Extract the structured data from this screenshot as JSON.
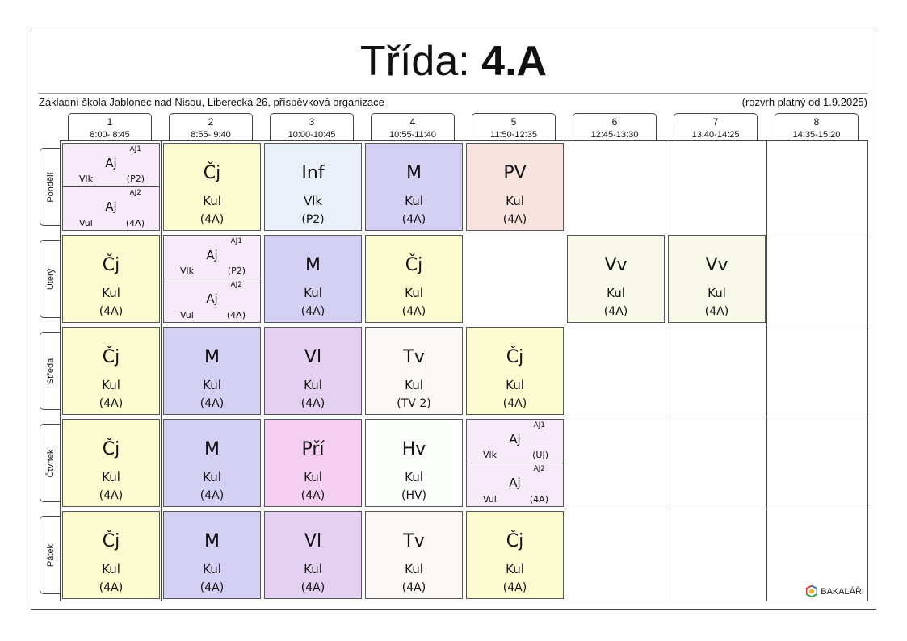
{
  "title": {
    "label": "Třída: ",
    "class": "4.A"
  },
  "school": "Základní škola Jablonec nad Nisou, Liberecká 26, příspěvková organizace",
  "validity": "(rozvrh platný od 1.9.2025)",
  "periods": [
    {
      "num": "1",
      "time": "8:00- 8:45"
    },
    {
      "num": "2",
      "time": "8:55- 9:40"
    },
    {
      "num": "3",
      "time": "10:00-10:45"
    },
    {
      "num": "4",
      "time": "10:55-11:40"
    },
    {
      "num": "5",
      "time": "11:50-12:35"
    },
    {
      "num": "6",
      "time": "12:45-13:30"
    },
    {
      "num": "7",
      "time": "13:40-14:25"
    },
    {
      "num": "8",
      "time": "14:35-15:20"
    }
  ],
  "days": [
    "Pondělí",
    "Úterý",
    "Středa",
    "Čtvrtek",
    "Pátek"
  ],
  "colors": {
    "Cj": "#fdfbd0",
    "Aj": "#f7ebf9",
    "Inf": "#eaf0fa",
    "M": "#d4d0f3",
    "PV": "#f8e3df",
    "Vv": "#f8f9e8",
    "Vl": "#e4d1f1",
    "Tv": "#faf7f4",
    "Pri": "#f5cff1",
    "Hv": "#fbfefb"
  },
  "lessons": [
    {
      "day": 0,
      "period": 0,
      "split": true,
      "color": "Aj",
      "groups": [
        {
          "group": "AJ1",
          "subject": "Aj",
          "teacher": "Vlk",
          "room": "(P2)"
        },
        {
          "group": "AJ2",
          "subject": "Aj",
          "teacher": "Vul",
          "room": "(4A)"
        }
      ]
    },
    {
      "day": 0,
      "period": 1,
      "subject": "Čj",
      "teacher": "Kul",
      "room": "(4A)",
      "color": "Cj"
    },
    {
      "day": 0,
      "period": 2,
      "subject": "Inf",
      "teacher": "Vlk",
      "room": "(P2)",
      "color": "Inf"
    },
    {
      "day": 0,
      "period": 3,
      "subject": "M",
      "teacher": "Kul",
      "room": "(4A)",
      "color": "M"
    },
    {
      "day": 0,
      "period": 4,
      "subject": "PV",
      "teacher": "Kul",
      "room": "(4A)",
      "color": "PV"
    },
    {
      "day": 1,
      "period": 0,
      "subject": "Čj",
      "teacher": "Kul",
      "room": "(4A)",
      "color": "Cj"
    },
    {
      "day": 1,
      "period": 1,
      "split": true,
      "color": "Aj",
      "groups": [
        {
          "group": "AJ1",
          "subject": "Aj",
          "teacher": "Vlk",
          "room": "(P2)"
        },
        {
          "group": "AJ2",
          "subject": "Aj",
          "teacher": "Vul",
          "room": "(4A)"
        }
      ]
    },
    {
      "day": 1,
      "period": 2,
      "subject": "M",
      "teacher": "Kul",
      "room": "(4A)",
      "color": "M"
    },
    {
      "day": 1,
      "period": 3,
      "subject": "Čj",
      "teacher": "Kul",
      "room": "(4A)",
      "color": "Cj"
    },
    {
      "day": 1,
      "period": 5,
      "subject": "Vv",
      "teacher": "Kul",
      "room": "(4A)",
      "color": "Vv"
    },
    {
      "day": 1,
      "period": 6,
      "subject": "Vv",
      "teacher": "Kul",
      "room": "(4A)",
      "color": "Vv"
    },
    {
      "day": 2,
      "period": 0,
      "subject": "Čj",
      "teacher": "Kul",
      "room": "(4A)",
      "color": "Cj"
    },
    {
      "day": 2,
      "period": 1,
      "subject": "M",
      "teacher": "Kul",
      "room": "(4A)",
      "color": "M"
    },
    {
      "day": 2,
      "period": 2,
      "subject": "Vl",
      "teacher": "Kul",
      "room": "(4A)",
      "color": "Vl"
    },
    {
      "day": 2,
      "period": 3,
      "subject": "Tv",
      "teacher": "Kul",
      "room": "(TV 2)",
      "color": "Tv"
    },
    {
      "day": 2,
      "period": 4,
      "subject": "Čj",
      "teacher": "Kul",
      "room": "(4A)",
      "color": "Cj"
    },
    {
      "day": 3,
      "period": 0,
      "subject": "Čj",
      "teacher": "Kul",
      "room": "(4A)",
      "color": "Cj"
    },
    {
      "day": 3,
      "period": 1,
      "subject": "M",
      "teacher": "Kul",
      "room": "(4A)",
      "color": "M"
    },
    {
      "day": 3,
      "period": 2,
      "subject": "Pří",
      "teacher": "Kul",
      "room": "(4A)",
      "color": "Pri"
    },
    {
      "day": 3,
      "period": 3,
      "subject": "Hv",
      "teacher": "Kul",
      "room": "(HV)",
      "color": "Hv"
    },
    {
      "day": 3,
      "period": 4,
      "split": true,
      "color": "Aj",
      "groups": [
        {
          "group": "AJ1",
          "subject": "Aj",
          "teacher": "Vlk",
          "room": "(UJ)"
        },
        {
          "group": "AJ2",
          "subject": "Aj",
          "teacher": "Vul",
          "room": "(4A)"
        }
      ]
    },
    {
      "day": 4,
      "period": 0,
      "subject": "Čj",
      "teacher": "Kul",
      "room": "(4A)",
      "color": "Cj"
    },
    {
      "day": 4,
      "period": 1,
      "subject": "M",
      "teacher": "Kul",
      "room": "(4A)",
      "color": "M"
    },
    {
      "day": 4,
      "period": 2,
      "subject": "Vl",
      "teacher": "Kul",
      "room": "(4A)",
      "color": "Vl"
    },
    {
      "day": 4,
      "period": 3,
      "subject": "Tv",
      "teacher": "Kul",
      "room": "(4A)",
      "color": "Tv"
    },
    {
      "day": 4,
      "period": 4,
      "subject": "Čj",
      "teacher": "Kul",
      "room": "(4A)",
      "color": "Cj"
    }
  ],
  "logo": {
    "text": "BAKALÁŘI",
    "icon": "bakalari-logo-icon"
  }
}
